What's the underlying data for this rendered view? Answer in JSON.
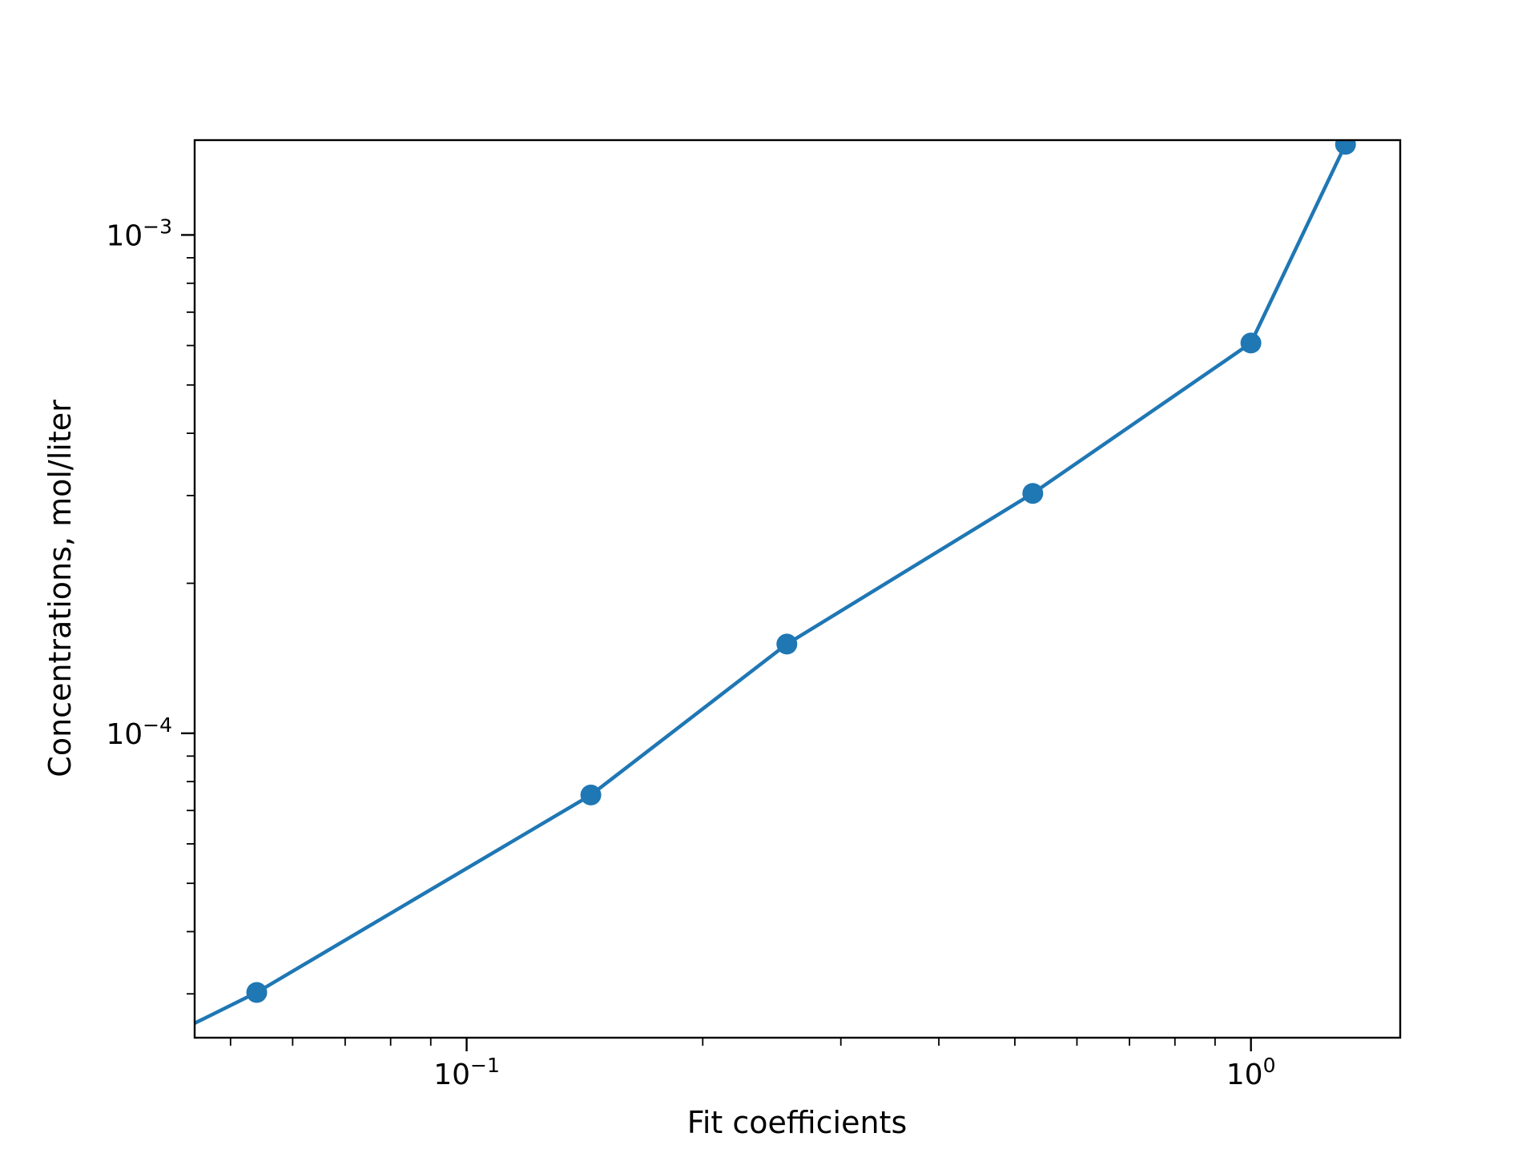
{
  "chart_data": {
    "type": "line",
    "title": "",
    "xlabel": "Fit coefficients",
    "ylabel": "Concentrations, mol/liter",
    "xscale": "log",
    "yscale": "log",
    "xlim": [
      0.045,
      1.55
    ],
    "ylim": [
      2.45e-05,
      0.00155
    ],
    "grid": false,
    "legend": "none",
    "color": "#1f77b4",
    "x_ticks": [
      {
        "base": "10",
        "exp": "−1",
        "value": 0.1
      },
      {
        "base": "10",
        "exp": "0",
        "value": 1
      }
    ],
    "y_ticks": [
      {
        "base": "10",
        "exp": "−4",
        "value": 0.0001
      },
      {
        "base": "10",
        "exp": "−3",
        "value": 0.001
      }
    ],
    "series": [
      {
        "x": [
          0.054,
          0.144,
          0.256,
          0.527,
          1.0,
          1.32
        ],
        "y": [
          3.02e-05,
          7.52e-05,
          0.000151,
          0.000303,
          0.000607,
          0.00152
        ]
      }
    ],
    "line_extends_to": {
      "x": 0.045,
      "y": 2.62e-05
    }
  }
}
